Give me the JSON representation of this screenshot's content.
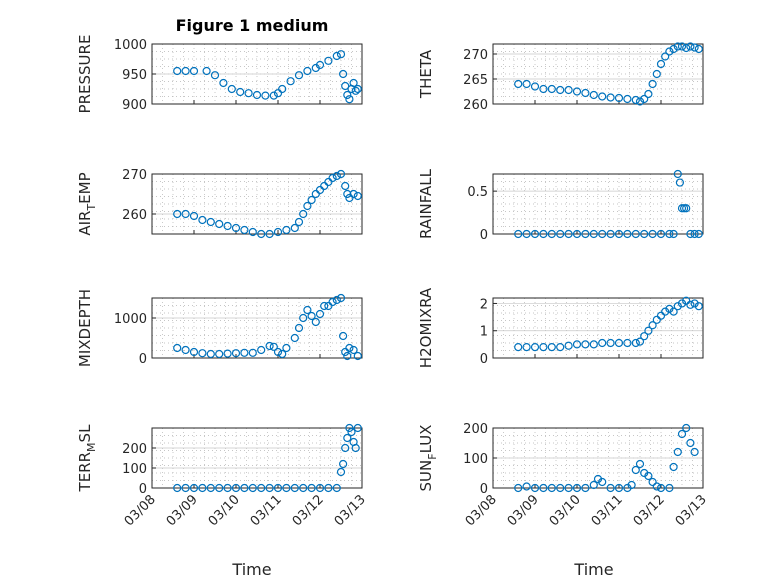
{
  "figure": {
    "title": "Figure 1 medium",
    "marker_color": "#0072BD"
  },
  "chart_data": [
    {
      "type": "scatter",
      "title": "Figure 1 medium",
      "ylabel": "PRESSURE",
      "ylim": [
        900,
        1000
      ],
      "yticks": [
        900,
        950,
        1000
      ],
      "xlim": [
        "03/08",
        "03/13"
      ],
      "xticks": [
        "03/08",
        "03/09",
        "03/10",
        "03/11",
        "03/12",
        "03/13"
      ],
      "grid": true,
      "points": [
        [
          8.6,
          955
        ],
        [
          8.8,
          955
        ],
        [
          9.0,
          955
        ],
        [
          9.3,
          955
        ],
        [
          9.5,
          948
        ],
        [
          9.7,
          935
        ],
        [
          9.9,
          925
        ],
        [
          10.1,
          920
        ],
        [
          10.3,
          918
        ],
        [
          10.5,
          915
        ],
        [
          10.7,
          914
        ],
        [
          10.9,
          914
        ],
        [
          11.0,
          918
        ],
        [
          11.1,
          925
        ],
        [
          11.3,
          938
        ],
        [
          11.5,
          948
        ],
        [
          11.7,
          955
        ],
        [
          11.9,
          960
        ],
        [
          12.0,
          965
        ],
        [
          12.2,
          972
        ],
        [
          12.4,
          980
        ],
        [
          12.5,
          983
        ],
        [
          12.55,
          950
        ],
        [
          12.6,
          930
        ],
        [
          12.65,
          915
        ],
        [
          12.7,
          908
        ],
        [
          12.75,
          925
        ],
        [
          12.8,
          935
        ],
        [
          12.85,
          922
        ],
        [
          12.9,
          925
        ]
      ]
    },
    {
      "type": "scatter",
      "ylabel": "THETA",
      "ylim": [
        260,
        272
      ],
      "yticks": [
        260,
        265,
        270
      ],
      "grid": true,
      "points": [
        [
          8.6,
          264
        ],
        [
          8.8,
          264
        ],
        [
          9.0,
          263.5
        ],
        [
          9.2,
          263
        ],
        [
          9.4,
          263
        ],
        [
          9.6,
          262.8
        ],
        [
          9.8,
          262.8
        ],
        [
          10.0,
          262.5
        ],
        [
          10.2,
          262.2
        ],
        [
          10.4,
          261.8
        ],
        [
          10.6,
          261.5
        ],
        [
          10.8,
          261.3
        ],
        [
          11.0,
          261.2
        ],
        [
          11.2,
          261
        ],
        [
          11.4,
          260.8
        ],
        [
          11.5,
          260.5
        ],
        [
          11.6,
          261
        ],
        [
          11.7,
          262
        ],
        [
          11.8,
          264
        ],
        [
          11.9,
          266
        ],
        [
          12.0,
          268
        ],
        [
          12.1,
          269.5
        ],
        [
          12.2,
          270.5
        ],
        [
          12.3,
          271
        ],
        [
          12.4,
          271.5
        ],
        [
          12.5,
          271.5
        ],
        [
          12.6,
          271.2
        ],
        [
          12.7,
          271.5
        ],
        [
          12.8,
          271.3
        ],
        [
          12.9,
          271
        ]
      ]
    },
    {
      "type": "scatter",
      "ylabel": "AIR_TEMP",
      "ylabel_main": "AIR",
      "ylabel_sub": "T",
      "ylabel_rest": "EMP",
      "ylim": [
        255,
        270
      ],
      "yticks": [
        260,
        270
      ],
      "grid": true,
      "points": [
        [
          8.6,
          260
        ],
        [
          8.8,
          260
        ],
        [
          9.0,
          259.5
        ],
        [
          9.2,
          258.5
        ],
        [
          9.4,
          258
        ],
        [
          9.6,
          257.5
        ],
        [
          9.8,
          257
        ],
        [
          10.0,
          256.5
        ],
        [
          10.2,
          256
        ],
        [
          10.4,
          255.5
        ],
        [
          10.6,
          255
        ],
        [
          10.8,
          255
        ],
        [
          11.0,
          255.5
        ],
        [
          11.2,
          256
        ],
        [
          11.4,
          256.5
        ],
        [
          11.5,
          258
        ],
        [
          11.6,
          260
        ],
        [
          11.7,
          262
        ],
        [
          11.8,
          263.5
        ],
        [
          11.9,
          265
        ],
        [
          12.0,
          266
        ],
        [
          12.1,
          267
        ],
        [
          12.2,
          268
        ],
        [
          12.3,
          269
        ],
        [
          12.4,
          269.5
        ],
        [
          12.5,
          270
        ],
        [
          12.6,
          267
        ],
        [
          12.65,
          265
        ],
        [
          12.7,
          264
        ],
        [
          12.8,
          265
        ],
        [
          12.9,
          264.5
        ]
      ]
    },
    {
      "type": "scatter",
      "ylabel": "RAINFALL",
      "ylim": [
        0,
        0.7
      ],
      "yticks": [
        0,
        0.5
      ],
      "grid": true,
      "points": [
        [
          8.6,
          0
        ],
        [
          8.8,
          0
        ],
        [
          9.0,
          0
        ],
        [
          9.2,
          0
        ],
        [
          9.4,
          0
        ],
        [
          9.6,
          0
        ],
        [
          9.8,
          0
        ],
        [
          10.0,
          0
        ],
        [
          10.2,
          0
        ],
        [
          10.4,
          0
        ],
        [
          10.6,
          0
        ],
        [
          10.8,
          0
        ],
        [
          11.0,
          0
        ],
        [
          11.2,
          0
        ],
        [
          11.4,
          0
        ],
        [
          11.6,
          0
        ],
        [
          11.8,
          0
        ],
        [
          12.0,
          0
        ],
        [
          12.2,
          0
        ],
        [
          12.3,
          0
        ],
        [
          12.4,
          0.7
        ],
        [
          12.45,
          0.6
        ],
        [
          12.5,
          0.3
        ],
        [
          12.55,
          0.3
        ],
        [
          12.6,
          0.3
        ],
        [
          12.7,
          0
        ],
        [
          12.8,
          0
        ],
        [
          12.9,
          0
        ]
      ]
    },
    {
      "type": "scatter",
      "ylabel": "MIXDEPTH",
      "ylim": [
        0,
        1500
      ],
      "yticks": [
        0,
        1000
      ],
      "grid": true,
      "points": [
        [
          8.6,
          250
        ],
        [
          8.8,
          200
        ],
        [
          9.0,
          150
        ],
        [
          9.2,
          120
        ],
        [
          9.4,
          100
        ],
        [
          9.6,
          100
        ],
        [
          9.8,
          110
        ],
        [
          10.0,
          120
        ],
        [
          10.2,
          130
        ],
        [
          10.4,
          130
        ],
        [
          10.6,
          200
        ],
        [
          10.8,
          300
        ],
        [
          10.9,
          280
        ],
        [
          11.0,
          150
        ],
        [
          11.1,
          100
        ],
        [
          11.2,
          250
        ],
        [
          11.4,
          500
        ],
        [
          11.5,
          750
        ],
        [
          11.6,
          1000
        ],
        [
          11.7,
          1200
        ],
        [
          11.8,
          1050
        ],
        [
          11.9,
          900
        ],
        [
          12.0,
          1100
        ],
        [
          12.1,
          1300
        ],
        [
          12.2,
          1300
        ],
        [
          12.3,
          1400
        ],
        [
          12.4,
          1450
        ],
        [
          12.5,
          1500
        ],
        [
          12.55,
          550
        ],
        [
          12.6,
          150
        ],
        [
          12.65,
          50
        ],
        [
          12.7,
          250
        ],
        [
          12.8,
          200
        ],
        [
          12.9,
          50
        ]
      ]
    },
    {
      "type": "scatter",
      "ylabel": "H2OMIXRA",
      "ylim": [
        0,
        2.2
      ],
      "yticks": [
        0,
        1,
        2
      ],
      "grid": true,
      "points": [
        [
          8.6,
          0.4
        ],
        [
          8.8,
          0.4
        ],
        [
          9.0,
          0.4
        ],
        [
          9.2,
          0.4
        ],
        [
          9.4,
          0.4
        ],
        [
          9.6,
          0.4
        ],
        [
          9.8,
          0.45
        ],
        [
          10.0,
          0.5
        ],
        [
          10.2,
          0.5
        ],
        [
          10.4,
          0.5
        ],
        [
          10.6,
          0.55
        ],
        [
          10.8,
          0.55
        ],
        [
          11.0,
          0.55
        ],
        [
          11.2,
          0.55
        ],
        [
          11.4,
          0.55
        ],
        [
          11.5,
          0.6
        ],
        [
          11.6,
          0.8
        ],
        [
          11.7,
          1.0
        ],
        [
          11.8,
          1.2
        ],
        [
          11.9,
          1.4
        ],
        [
          12.0,
          1.55
        ],
        [
          12.1,
          1.7
        ],
        [
          12.2,
          1.8
        ],
        [
          12.3,
          1.7
        ],
        [
          12.4,
          1.9
        ],
        [
          12.5,
          2.0
        ],
        [
          12.6,
          2.1
        ],
        [
          12.7,
          1.95
        ],
        [
          12.8,
          2.0
        ],
        [
          12.9,
          1.9
        ]
      ]
    },
    {
      "type": "scatter",
      "ylabel": "TERR_MSL",
      "ylabel_main": "TERR",
      "ylabel_sub": "M",
      "ylabel_rest": "SL",
      "ylim": [
        0,
        300
      ],
      "yticks": [
        0,
        100,
        200
      ],
      "xlabel": "Time",
      "grid": true,
      "points": [
        [
          8.6,
          0
        ],
        [
          8.8,
          0
        ],
        [
          9.0,
          0
        ],
        [
          9.2,
          0
        ],
        [
          9.4,
          0
        ],
        [
          9.6,
          0
        ],
        [
          9.8,
          0
        ],
        [
          10.0,
          0
        ],
        [
          10.2,
          0
        ],
        [
          10.4,
          0
        ],
        [
          10.6,
          0
        ],
        [
          10.8,
          0
        ],
        [
          11.0,
          0
        ],
        [
          11.2,
          0
        ],
        [
          11.4,
          0
        ],
        [
          11.6,
          0
        ],
        [
          11.8,
          0
        ],
        [
          12.0,
          0
        ],
        [
          12.2,
          0
        ],
        [
          12.4,
          0
        ],
        [
          12.5,
          80
        ],
        [
          12.55,
          120
        ],
        [
          12.6,
          200
        ],
        [
          12.65,
          250
        ],
        [
          12.7,
          300
        ],
        [
          12.75,
          280
        ],
        [
          12.8,
          230
        ],
        [
          12.85,
          200
        ],
        [
          12.9,
          300
        ]
      ]
    },
    {
      "type": "scatter",
      "ylabel": "SUN_FLUX",
      "ylabel_main": "SUN",
      "ylabel_sub": "F",
      "ylabel_rest": "LUX",
      "ylim": [
        0,
        200
      ],
      "yticks": [
        0,
        100,
        200
      ],
      "xlabel": "Time",
      "grid": true,
      "points": [
        [
          8.6,
          0
        ],
        [
          8.8,
          5
        ],
        [
          9.0,
          0
        ],
        [
          9.2,
          0
        ],
        [
          9.4,
          0
        ],
        [
          9.6,
          0
        ],
        [
          9.8,
          0
        ],
        [
          10.0,
          0
        ],
        [
          10.2,
          0
        ],
        [
          10.4,
          10
        ],
        [
          10.5,
          30
        ],
        [
          10.6,
          20
        ],
        [
          10.8,
          0
        ],
        [
          11.0,
          0
        ],
        [
          11.2,
          0
        ],
        [
          11.3,
          10
        ],
        [
          11.4,
          60
        ],
        [
          11.5,
          80
        ],
        [
          11.6,
          50
        ],
        [
          11.7,
          40
        ],
        [
          11.8,
          20
        ],
        [
          11.9,
          5
        ],
        [
          12.0,
          0
        ],
        [
          12.2,
          0
        ],
        [
          12.3,
          70
        ],
        [
          12.4,
          120
        ],
        [
          12.5,
          180
        ],
        [
          12.6,
          200
        ],
        [
          12.7,
          150
        ],
        [
          12.8,
          120
        ]
      ]
    }
  ]
}
